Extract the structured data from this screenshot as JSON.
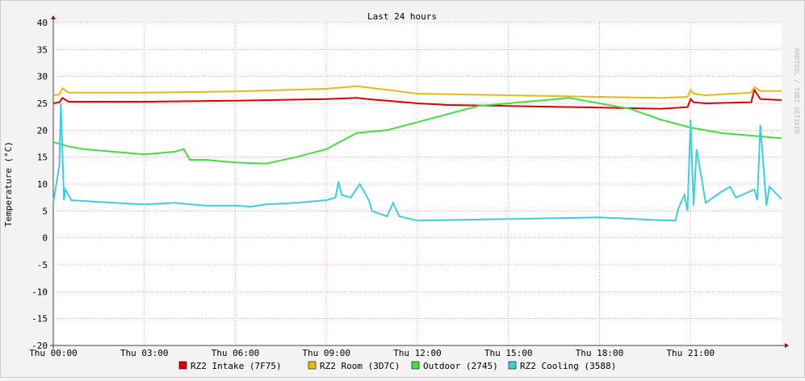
{
  "chart_data": {
    "type": "line",
    "title": "Last 24 hours",
    "y_label": "Temperature (°C)",
    "watermark": "RRDTOOL / TOBI OETIKER",
    "xlim": [
      0,
      24
    ],
    "ylim": [
      -20,
      40
    ],
    "xticks": [
      {
        "value": 0,
        "label": "Thu 00:00"
      },
      {
        "value": 3,
        "label": "Thu 03:00"
      },
      {
        "value": 6,
        "label": "Thu 06:00"
      },
      {
        "value": 9,
        "label": "Thu 09:00"
      },
      {
        "value": 12,
        "label": "Thu 12:00"
      },
      {
        "value": 15,
        "label": "Thu 15:00"
      },
      {
        "value": 18,
        "label": "Thu 18:00"
      },
      {
        "value": 21,
        "label": "Thu 21:00"
      }
    ],
    "yticks": [
      -20,
      -15,
      -10,
      -5,
      0,
      5,
      10,
      15,
      20,
      25,
      30,
      35,
      40
    ],
    "grid": true,
    "series": [
      {
        "name": "RZ2 Intake (7F75)",
        "color": "#e00000",
        "x": [
          0,
          0.2,
          0.3,
          0.5,
          3,
          6,
          9,
          10,
          10.5,
          11,
          12,
          13,
          15,
          18,
          20,
          20.9,
          21.0,
          21.1,
          21.5,
          23,
          23.1,
          23.3,
          24
        ],
        "values": [
          25,
          25.2,
          26,
          25.3,
          25.3,
          25.5,
          25.8,
          26,
          25.7,
          25.5,
          25,
          24.7,
          24.5,
          24.2,
          24,
          24.3,
          25.8,
          25.2,
          25,
          25.2,
          27.5,
          25.8,
          25.6
        ]
      },
      {
        "name": "RZ2 Room (3D7C)",
        "color": "#e8b818",
        "x": [
          0,
          0.2,
          0.3,
          0.5,
          3,
          6,
          9,
          10,
          11,
          12,
          15,
          18,
          20,
          20.9,
          21.0,
          21.1,
          21.5,
          23,
          23.1,
          23.3,
          24
        ],
        "values": [
          26.5,
          26.6,
          27.8,
          27,
          27,
          27.2,
          27.7,
          28.2,
          27.5,
          26.8,
          26.5,
          26.2,
          26,
          26.2,
          27.5,
          26.8,
          26.5,
          27,
          28,
          27.3,
          27.3
        ]
      },
      {
        "name": "Outdoor (2745)",
        "color": "#44dd44",
        "x": [
          0,
          0.5,
          1,
          2,
          3,
          4,
          4.3,
          4.5,
          5,
          6,
          7,
          8,
          9,
          9.5,
          10,
          11,
          12,
          13,
          14,
          15,
          16,
          17,
          18,
          19,
          20,
          21,
          22,
          23,
          24
        ],
        "values": [
          17.8,
          17,
          16.5,
          16,
          15.5,
          16,
          16.5,
          14.5,
          14.5,
          14,
          13.8,
          15,
          16.5,
          18,
          19.5,
          20,
          21.5,
          23,
          24.5,
          25,
          25.5,
          26,
          25,
          24,
          22,
          20.5,
          19.5,
          19,
          18.5
        ]
      },
      {
        "name": "RZ2 Cooling (3588)",
        "color": "#44ccdd",
        "x": [
          0,
          0.2,
          0.25,
          0.35,
          0.4,
          0.6,
          2,
          3,
          4,
          5,
          6,
          6.5,
          7,
          8,
          9,
          9.3,
          9.4,
          9.5,
          9.8,
          10.1,
          10.4,
          10.5,
          11,
          11.2,
          11.4,
          12,
          15,
          18,
          20,
          20.5,
          20.6,
          20.8,
          20.9,
          21.0,
          21.1,
          21.2,
          21.5,
          22,
          22.3,
          22.5,
          23.1,
          23.2,
          23.3,
          23.5,
          23.6,
          24
        ],
        "values": [
          6.5,
          13.5,
          25,
          7,
          9,
          7,
          6.5,
          6.2,
          6.5,
          6,
          6,
          5.8,
          6.2,
          6.5,
          7,
          7.5,
          10.5,
          8,
          7.5,
          10,
          7,
          5,
          4,
          6.5,
          4,
          3.2,
          3.5,
          3.8,
          3.3,
          3.2,
          5.5,
          8,
          5,
          22,
          6,
          16.5,
          6.5,
          8.5,
          9.5,
          7.5,
          9,
          7,
          21,
          6,
          9.5,
          7.2
        ]
      }
    ]
  }
}
